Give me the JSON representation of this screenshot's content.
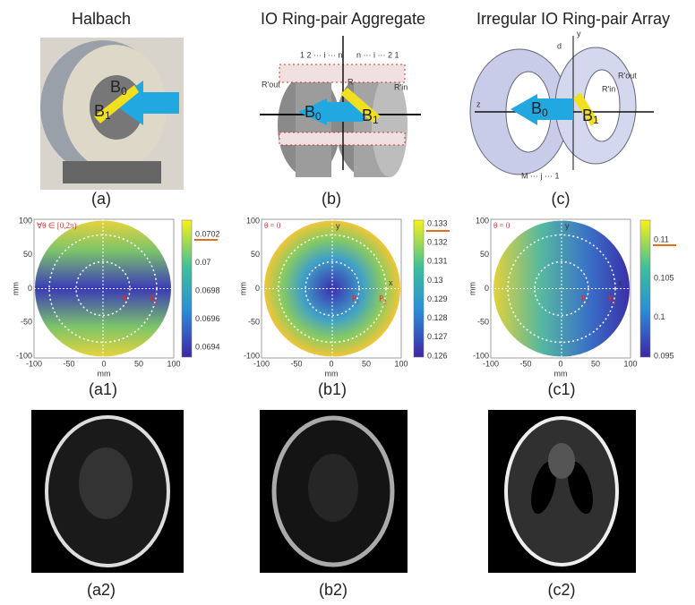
{
  "titles": [
    "Halbach",
    "IO Ring-pair Aggregate",
    "Irregular IO Ring-pair Array"
  ],
  "field": {
    "b0": [
      "B",
      "0"
    ],
    "b1": [
      "B",
      "1"
    ]
  },
  "photo_labels": [
    "(a)",
    "(b)",
    "(c)"
  ],
  "diagram_b": {
    "left_index": "1 2 ··· i ··· n",
    "right_index": "n ··· i ··· 2 1",
    "r": "R",
    "r_out": "R'out",
    "r_in": "R'in"
  },
  "diagram_c": {
    "z": "z",
    "y": "y",
    "d": "d",
    "r_in": "R'in",
    "r_out": "R'out",
    "index": "M ··· j ··· 1"
  },
  "axis_ticks_x": [
    "-100",
    "-50",
    "0",
    "50",
    "100"
  ],
  "axis_ticks_y": [
    "100",
    "50",
    "0",
    "-50",
    "-100"
  ],
  "axis_label": "mm",
  "p1": [
    "P",
    "1"
  ],
  "p2": [
    "P",
    "2"
  ],
  "x": "x",
  "y": "y",
  "plots": [
    {
      "label": "(a1)",
      "note": "∀θ ∈ [0,2π)",
      "colorbar_ticks": [
        "0.0702",
        "0.07",
        "0.0698",
        "0.0696",
        "0.0694"
      ]
    },
    {
      "label": "(b1)",
      "note": "θ = 0",
      "colorbar_ticks": [
        "0.133",
        "0.132",
        "0.131",
        "0.13",
        "0.129",
        "0.128",
        "0.127",
        "0.126"
      ]
    },
    {
      "label": "(c1)",
      "note": "θ = 0",
      "colorbar_ticks": [
        "0.11",
        "0.105",
        "0.1",
        "0.095"
      ]
    }
  ],
  "image_labels": [
    "(a2)",
    "(b2)",
    "(c2)"
  ]
}
